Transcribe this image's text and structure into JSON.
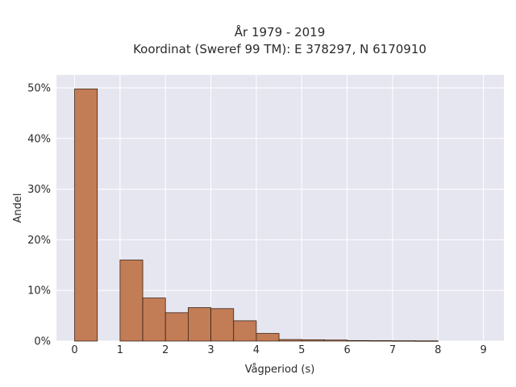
{
  "chart_data": {
    "type": "bar",
    "title": "År 1979 - 2019",
    "subtitle": "Koordinat (Sweref 99 TM): E 378297, N 6170910",
    "xlabel": "Vågperiod (s)",
    "ylabel": "Andel",
    "xlim": [
      -0.4,
      9.45
    ],
    "ylim": [
      0,
      0.5
    ],
    "x_ticks": [
      0,
      1,
      2,
      3,
      4,
      5,
      6,
      7,
      8,
      9
    ],
    "y_ticks": [
      {
        "value": 0,
        "label": "0%"
      },
      {
        "value": 0.1,
        "label": "10%"
      },
      {
        "value": 0.2,
        "label": "20%"
      },
      {
        "value": 0.3,
        "label": "30%"
      },
      {
        "value": 0.4,
        "label": "40%"
      },
      {
        "value": 0.5,
        "label": "50%"
      }
    ],
    "bin_width": 0.5,
    "bins": [
      {
        "x": 0.0,
        "value": 0.498
      },
      {
        "x": 0.5,
        "value": 0.0
      },
      {
        "x": 1.0,
        "value": 0.16
      },
      {
        "x": 1.5,
        "value": 0.085
      },
      {
        "x": 2.0,
        "value": 0.056
      },
      {
        "x": 2.5,
        "value": 0.066
      },
      {
        "x": 3.0,
        "value": 0.064
      },
      {
        "x": 3.5,
        "value": 0.04
      },
      {
        "x": 4.0,
        "value": 0.015
      },
      {
        "x": 4.5,
        "value": 0.003
      },
      {
        "x": 5.0,
        "value": 0.0025
      },
      {
        "x": 5.5,
        "value": 0.002
      },
      {
        "x": 6.0,
        "value": 0.001
      },
      {
        "x": 6.5,
        "value": 0.0008
      },
      {
        "x": 7.0,
        "value": 0.0006
      },
      {
        "x": 7.5,
        "value": 0.0004
      }
    ],
    "grid": true,
    "colors": {
      "bar": "#c27c56",
      "bar_edge": "#3a2414",
      "plot_bg": "#e6e6f0",
      "grid": "#ffffff"
    }
  }
}
